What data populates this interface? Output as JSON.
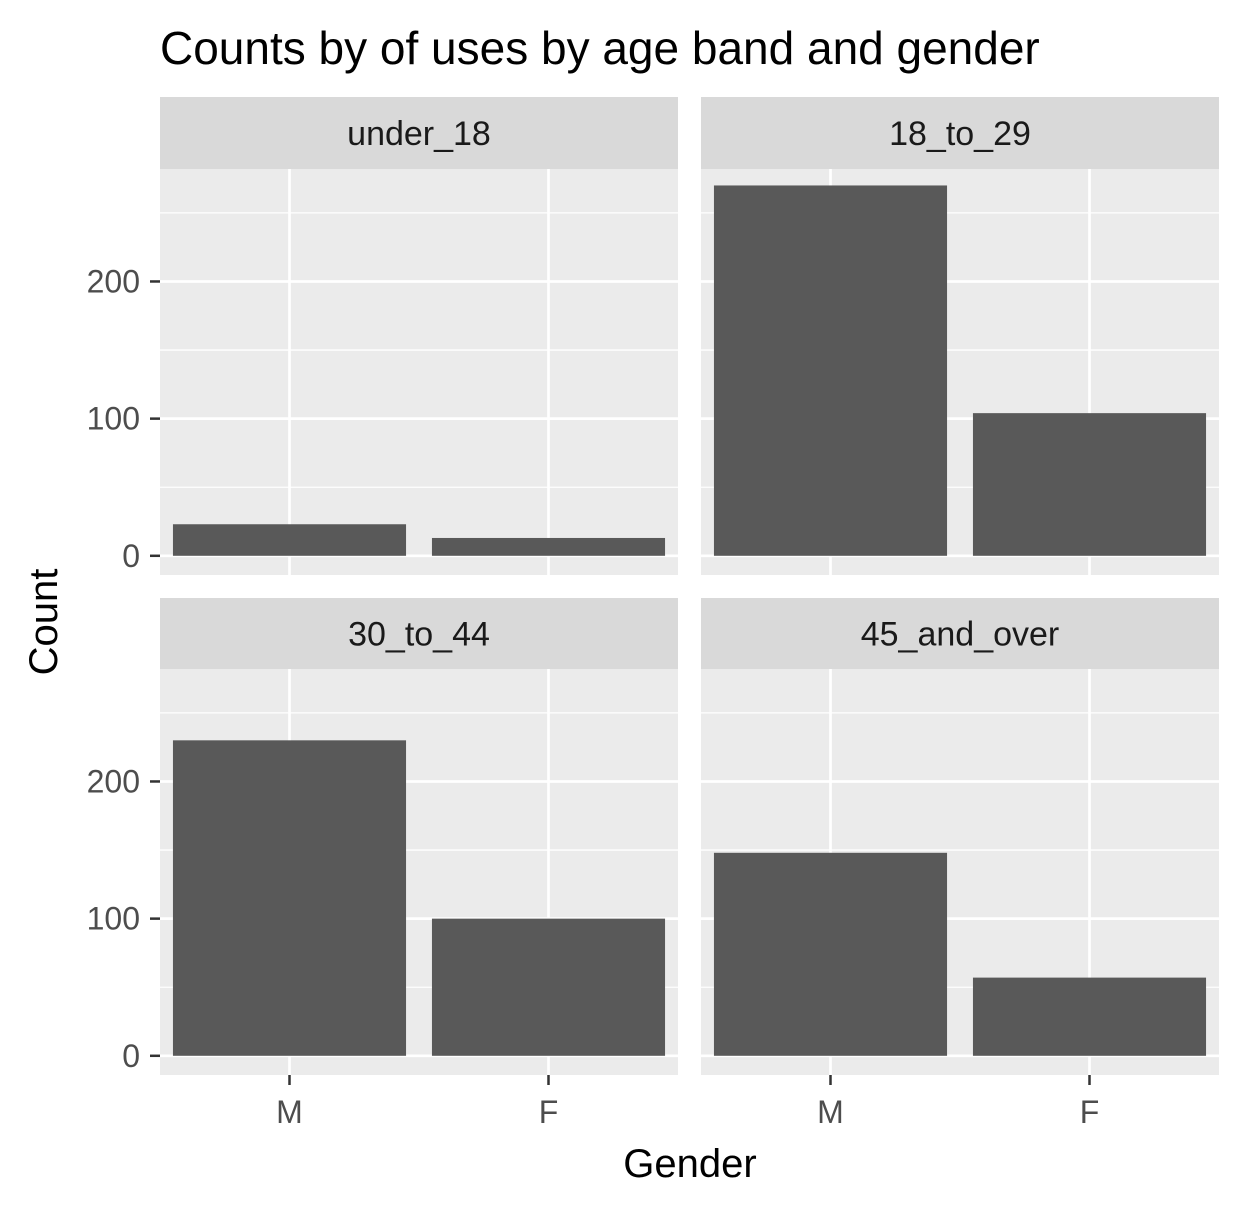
{
  "chart_data": {
    "type": "bar",
    "title": "Counts by of uses by age band and gender",
    "xlabel": "Gender",
    "ylabel": "Count",
    "categories": [
      "M",
      "F"
    ],
    "ylim": [
      -14,
      282
    ],
    "yticks": [
      0,
      100,
      200
    ],
    "grid": true,
    "facets": [
      {
        "name": "under_18",
        "values": [
          23,
          13
        ]
      },
      {
        "name": "18_to_29",
        "values": [
          270,
          104
        ]
      },
      {
        "name": "30_to_44",
        "values": [
          230,
          100
        ]
      },
      {
        "name": "45_and_over",
        "values": [
          148,
          57
        ]
      }
    ],
    "colors": {
      "bar": "#595959",
      "panel": "#ebebeb",
      "strip": "#d9d9d9",
      "grid": "#ffffff"
    }
  }
}
